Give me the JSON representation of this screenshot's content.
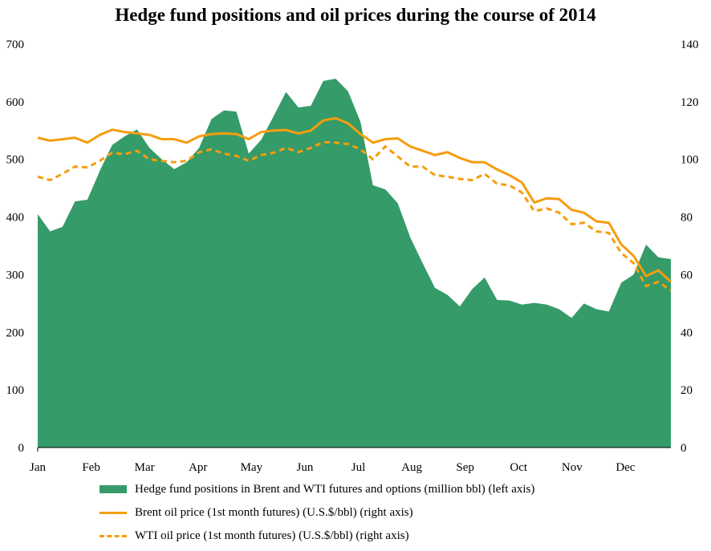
{
  "title": "Hedge fund positions and oil prices during the course of 2014",
  "colors": {
    "area": "#359b68",
    "brent": "#f59d0f",
    "wti": "#f59d0f",
    "axis": "#000000"
  },
  "legend": [
    {
      "label": "Hedge fund positions in Brent and WTI futures and options (million bbl) (left axis)",
      "style": "area"
    },
    {
      "label": "Brent oil price (1st month futures) (U.S.$/bbl)  (right axis)",
      "style": "solid"
    },
    {
      "label": "WTI oil price (1st month futures) (U.S.$/bbl) (right axis)",
      "style": "dashed"
    }
  ],
  "chart_data": {
    "type": "area",
    "title": "Hedge fund positions and oil prices during the course of 2014",
    "x_labels": [
      "Jan",
      "Feb",
      "Mar",
      "Apr",
      "May",
      "Jun",
      "Jul",
      "Aug",
      "Sep",
      "Oct",
      "Nov",
      "Dec"
    ],
    "n_weeks": 52,
    "y_left": {
      "range": [
        0,
        700
      ],
      "ticks": [
        "0",
        "100",
        "200",
        "300",
        "400",
        "500",
        "600",
        "700"
      ]
    },
    "y_right": {
      "range": [
        0,
        140
      ],
      "ticks": [
        "0",
        "20",
        "40",
        "60",
        "80",
        "100",
        "120",
        "140"
      ]
    },
    "legend_position": "bottom",
    "grid": false,
    "series": [
      {
        "name": "Hedge fund positions in Brent and WTI futures and options (million bbl) (left axis)",
        "axis": "left",
        "kind": "area",
        "values": [
          405,
          375,
          383,
          427,
          430,
          480,
          525,
          540,
          552,
          520,
          500,
          483,
          495,
          520,
          570,
          585,
          583,
          510,
          534,
          575,
          617,
          590,
          593,
          636,
          640,
          618,
          565,
          455,
          448,
          424,
          365,
          320,
          277,
          265,
          245,
          275,
          295,
          256,
          255,
          248,
          251,
          248,
          240,
          225,
          250,
          240,
          236,
          286,
          300,
          352,
          330,
          327
        ]
      },
      {
        "name": "Brent oil price (1st month futures) (U.S.$/bbl)  (right axis)",
        "axis": "right",
        "kind": "line",
        "values": [
          107.5,
          106.5,
          107,
          107.5,
          105.8,
          108.5,
          110.3,
          109.5,
          109,
          108.5,
          107,
          107,
          105.8,
          108,
          108.8,
          109,
          108.8,
          107,
          109.5,
          110,
          110.2,
          109,
          110,
          113.5,
          114.3,
          112.5,
          108.8,
          105.8,
          107,
          107.3,
          104.5,
          103,
          101.5,
          102.5,
          100.5,
          99,
          99,
          96.5,
          94.5,
          92,
          85,
          86.5,
          86.2,
          82.5,
          81.5,
          78.5,
          78,
          70.5,
          66.5,
          59.5,
          61.5,
          57.5
        ]
      },
      {
        "name": "WTI oil price (1st month futures) (U.S.$/bbl) (right axis)",
        "axis": "right",
        "kind": "dashed",
        "values": [
          94,
          92.8,
          95,
          97.5,
          97.2,
          99.5,
          102.3,
          101.8,
          103,
          100,
          99.5,
          99,
          99.5,
          102.5,
          103.5,
          102,
          101.2,
          99.5,
          101.5,
          102.3,
          104,
          102.5,
          104,
          106,
          105.8,
          105.3,
          103.5,
          100,
          104.5,
          101,
          97.5,
          97.5,
          94.5,
          94,
          93.2,
          92.8,
          95,
          91.5,
          91,
          88.5,
          82,
          83,
          81.5,
          77.5,
          78,
          75,
          74.5,
          67.5,
          64,
          56,
          57.5,
          54.5
        ]
      }
    ]
  }
}
